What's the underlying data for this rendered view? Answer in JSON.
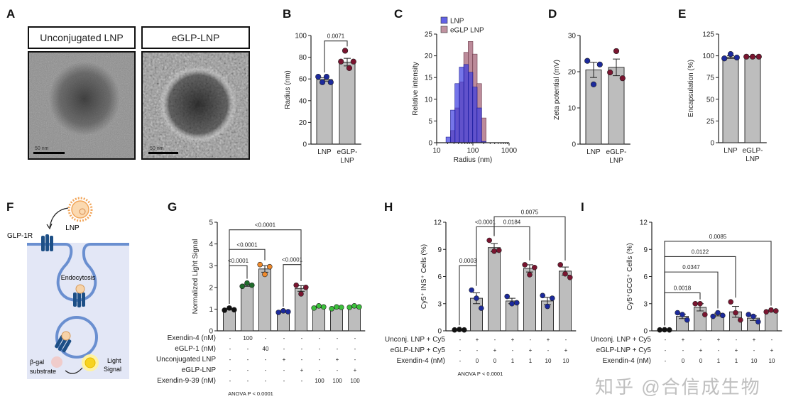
{
  "panel_letters": {
    "a": "A",
    "b": "B",
    "c": "C",
    "d": "D",
    "e": "E",
    "f": "F",
    "g": "G",
    "h": "H",
    "i": "I"
  },
  "panel_a": {
    "left_title": "Unconjugated LNP",
    "right_title": "eGLP-LNP",
    "scale_bar": "50 nm"
  },
  "panel_f": {
    "lnp": "LNP",
    "receptor": "GLP-1R",
    "endocytosis": "Endocytosis",
    "substrate_line1": "β-gal",
    "substrate_line2": "substrate",
    "signal_line1": "Light",
    "signal_line2": "Signal",
    "colors": {
      "cell": "#e3e7f6",
      "membrane": "#6a8fd0",
      "receptor": "#1d4f86",
      "lnp": "#f2a65a",
      "signal": "#f7d320"
    }
  },
  "watermark": "知乎 @合信成生物",
  "chart_data": [
    {
      "id": "B",
      "type": "bar",
      "ylabel": "Radius (nm)",
      "ylim": [
        0,
        100
      ],
      "yticks": [
        "0",
        "20",
        "40",
        "60",
        "80",
        "100"
      ],
      "categories": [
        [
          "LNP"
        ],
        [
          "eGLP-",
          "LNP"
        ]
      ],
      "means": [
        59.5,
        75.5
      ],
      "sem": [
        1.5,
        3.5
      ],
      "points": [
        [
          62,
          57,
          62,
          57
        ],
        [
          76,
          86,
          70,
          76
        ]
      ],
      "colors": [
        "#1c2a9c",
        "#7a1530"
      ],
      "brackets": [
        {
          "from": 0,
          "to": 1,
          "y": 95,
          "label": "0.0071"
        }
      ]
    },
    {
      "id": "C",
      "type": "histogram",
      "ylabel": "Relative intensity",
      "xlabel": "Radius (nm)",
      "xscale": "log",
      "xlim": [
        10,
        1000
      ],
      "xticks": [
        "10",
        "100",
        "1000"
      ],
      "ylim": [
        0,
        25
      ],
      "yticks": [
        "0",
        "5",
        "10",
        "15",
        "20",
        "25"
      ],
      "bin_centers": [
        21,
        28,
        37,
        49,
        65,
        86,
        113,
        150,
        200
      ],
      "series": [
        {
          "name": "eGLP LNP",
          "color": "#b07788",
          "values": [
            0,
            2.8,
            8.0,
            14.0,
            20.8,
            23.3,
            20.4,
            13.6,
            5.7
          ]
        },
        {
          "name": "LNP",
          "color": "#3b3be0",
          "values": [
            1.3,
            7.5,
            13.6,
            17.4,
            18.0,
            16.2,
            12.8,
            8.0,
            0.3
          ]
        }
      ],
      "legend": [
        "LNP",
        "eGLP LNP"
      ],
      "legend_position": "top"
    },
    {
      "id": "D",
      "type": "bar",
      "ylabel": "Zeta potential (mV)",
      "ylim": [
        0,
        30
      ],
      "yticks": [
        "0",
        "10",
        "20",
        "30"
      ],
      "categories": [
        [
          "LNP"
        ],
        [
          "eGLP-",
          "LNP"
        ]
      ],
      "means": [
        20.5,
        21.2
      ],
      "sem": [
        2.1,
        2.3
      ],
      "points": [
        [
          23,
          16.5,
          22
        ],
        [
          19.8,
          25.7,
          18.2
        ]
      ],
      "colors": [
        "#1c2a9c",
        "#7a1530"
      ],
      "brackets": []
    },
    {
      "id": "E",
      "type": "bar",
      "ylabel": "Encapsulation (%)",
      "ylim": [
        0,
        125
      ],
      "yticks": [
        "0",
        "25",
        "50",
        "75",
        "100",
        "125"
      ],
      "categories": [
        [
          "LNP"
        ],
        [
          "eGLP-",
          "LNP"
        ]
      ],
      "means": [
        98.5,
        99
      ],
      "sem": [
        1.5,
        0.3
      ],
      "points": [
        [
          97,
          102,
          98
        ],
        [
          99,
          99,
          99
        ]
      ],
      "colors": [
        "#1c2a9c",
        "#7a1530"
      ],
      "brackets": []
    },
    {
      "id": "G",
      "type": "bar",
      "ylabel": "Normalized Light Signal",
      "ylim": [
        0,
        5
      ],
      "yticks": [
        "0",
        "1",
        "2",
        "3",
        "4",
        "5"
      ],
      "means": [
        1.0,
        2.1,
        2.85,
        0.88,
        1.95,
        1.1,
        1.07,
        1.1
      ],
      "sem": [
        0.03,
        0.05,
        0.15,
        0.03,
        0.13,
        0.04,
        0.03,
        0.03
      ],
      "points": [
        [
          0.95,
          1.05,
          0.97
        ],
        [
          2.05,
          2.2,
          2.1
        ],
        [
          3.05,
          2.6,
          2.95
        ],
        [
          0.85,
          0.92,
          0.88
        ],
        [
          2.1,
          1.7,
          2.0
        ],
        [
          1.05,
          1.15,
          1.1
        ],
        [
          1.02,
          1.1,
          1.08
        ],
        [
          1.08,
          1.15,
          1.1
        ]
      ],
      "colors": [
        "#111111",
        "#1f6b2a",
        "#f08a2c",
        "#1c2a9c",
        "#7a1530",
        "#3bbf3b",
        "#3bbf3b",
        "#3bbf3b"
      ],
      "brackets": [
        {
          "from": 0,
          "to": 1,
          "y": 3.0,
          "label": "<0.0001"
        },
        {
          "from": 0,
          "to": 2,
          "y": 3.75,
          "label": "<0.0001"
        },
        {
          "from": 0,
          "to": 4,
          "y": 4.65,
          "label": "<0.0001"
        },
        {
          "from": 3,
          "to": 4,
          "y": 3.05,
          "label": "<0.0001"
        }
      ],
      "conditions": [
        {
          "label": "Exendin-4 (nM)",
          "values": [
            "-",
            "100",
            "-",
            "-",
            "-",
            "-",
            "-",
            "-"
          ]
        },
        {
          "label": "eGLP-1 (nM)",
          "values": [
            "-",
            "-",
            "40",
            "-",
            "-",
            "-",
            "-",
            "-"
          ]
        },
        {
          "label": "Unconjugated LNP",
          "values": [
            "-",
            "-",
            "-",
            "+",
            "-",
            "-",
            "+",
            "-"
          ]
        },
        {
          "label": "eGLP-LNP",
          "values": [
            "-",
            "-",
            "-",
            "-",
            "+",
            "-",
            "-",
            "+"
          ]
        },
        {
          "label": "Exendin-9-39 (nM)",
          "values": [
            "-",
            "-",
            "-",
            "-",
            "-",
            "100",
            "100",
            "100"
          ]
        }
      ],
      "note": "ANOVA P < 0.0001"
    },
    {
      "id": "H",
      "type": "bar",
      "ylabel": "Cy5⁺ INS⁺ Cells (%)",
      "ylim": [
        0,
        12
      ],
      "yticks": [
        "0",
        "3",
        "6",
        "9",
        "12"
      ],
      "means": [
        0.1,
        3.6,
        9.2,
        3.3,
        6.9,
        3.3,
        6.6
      ],
      "sem": [
        0.03,
        0.6,
        0.45,
        0.3,
        0.4,
        0.4,
        0.45
      ],
      "points": [
        [
          0.1,
          0.15,
          0.1
        ],
        [
          4.5,
          3.6,
          2.5
        ],
        [
          10.0,
          8.8,
          8.9
        ],
        [
          3.8,
          3.0,
          3.1
        ],
        [
          7.3,
          6.2,
          7.0
        ],
        [
          3.9,
          2.7,
          3.6
        ],
        [
          7.3,
          6.3,
          5.9
        ]
      ],
      "colors": [
        "#111111",
        "#1c2a9c",
        "#7a1530",
        "#1c2a9c",
        "#7a1530",
        "#1c2a9c",
        "#7a1530"
      ],
      "brackets": [
        {
          "from": 0,
          "to": 1,
          "y": 7.2,
          "label": "0.0003"
        },
        {
          "from": 1,
          "to": 2,
          "y": 11.5,
          "label": "<0.0001"
        },
        {
          "from": 2,
          "to": 4,
          "y": 11.5,
          "label": "0.0184"
        },
        {
          "from": 2,
          "to": 6,
          "y": 12.6,
          "label": "0.0075"
        }
      ],
      "conditions": [
        {
          "label": "Unconj. LNP + Cy5",
          "values": [
            "-",
            "+",
            "-",
            "+",
            "-",
            "+",
            "-"
          ]
        },
        {
          "label": "eGLP-LNP + Cy5",
          "values": [
            "-",
            "-",
            "+",
            "-",
            "+",
            "-",
            "+"
          ]
        },
        {
          "label": "Exendin-4 (nM)",
          "values": [
            "-",
            "0",
            "0",
            "1",
            "1",
            "10",
            "10"
          ]
        }
      ],
      "note": "ANOVA P < 0.0001"
    },
    {
      "id": "I",
      "type": "bar",
      "ylabel": "Cy5⁺GCG⁺ Cells (%)",
      "ylim": [
        0,
        12
      ],
      "yticks": [
        "0",
        "3",
        "6",
        "9",
        "12"
      ],
      "means": [
        0.1,
        1.6,
        2.6,
        1.8,
        2.1,
        1.4,
        2.2
      ],
      "sem": [
        0.03,
        0.25,
        0.4,
        0.15,
        0.6,
        0.25,
        0.07
      ],
      "points": [
        [
          0.1,
          0.12,
          0.1
        ],
        [
          2.0,
          1.8,
          1.2
        ],
        [
          3.0,
          3.0,
          1.8
        ],
        [
          1.6,
          2.0,
          1.7
        ],
        [
          3.2,
          2.0,
          1.2
        ],
        [
          1.8,
          1.6,
          1.0
        ],
        [
          2.1,
          2.3,
          2.2
        ]
      ],
      "colors": [
        "#111111",
        "#1c2a9c",
        "#7a1530",
        "#1c2a9c",
        "#7a1530",
        "#1c2a9c",
        "#7a1530"
      ],
      "brackets": [
        {
          "from": 0,
          "to": 2,
          "y": 4.2,
          "label": "0.0018"
        },
        {
          "from": 0,
          "to": 3,
          "y": 6.5,
          "label": "0.0347"
        },
        {
          "from": 0,
          "to": 4,
          "y": 8.2,
          "label": "0.0122"
        },
        {
          "from": 0,
          "to": 6,
          "y": 9.9,
          "label": "0.0085"
        }
      ],
      "conditions": [
        {
          "label": "Unconj. LNP + Cy5",
          "values": [
            "-",
            "+",
            "-",
            "+",
            "-",
            "+",
            "-"
          ]
        },
        {
          "label": "eGLP-LNP + Cy5",
          "values": [
            "-",
            "-",
            "+",
            "-",
            "+",
            "-",
            "+"
          ]
        },
        {
          "label": "Exendin-4 (nM)",
          "values": [
            "-",
            "0",
            "0",
            "1",
            "1",
            "10",
            "10"
          ]
        }
      ]
    }
  ]
}
